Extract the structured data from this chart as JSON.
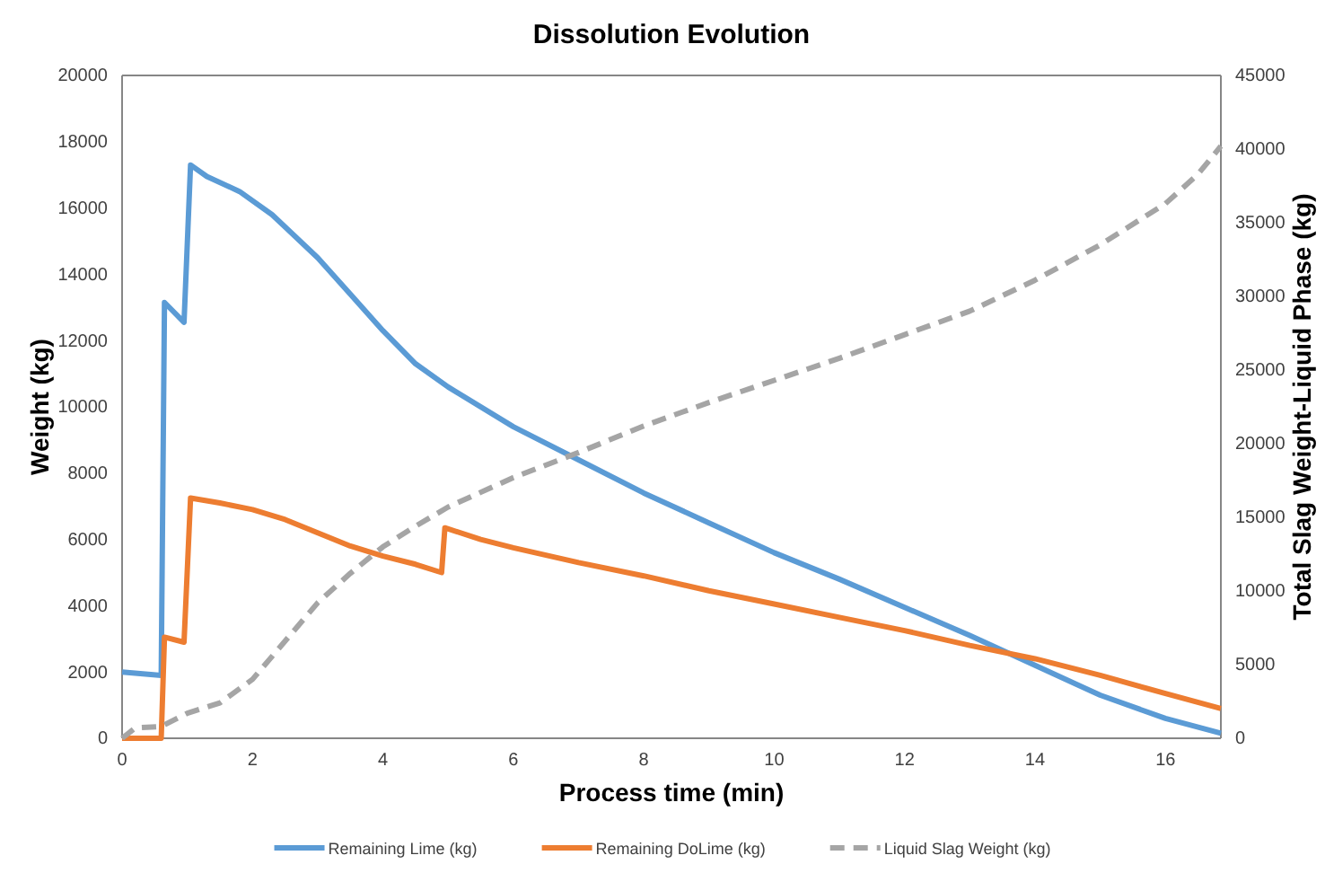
{
  "chart_data": {
    "type": "line",
    "title": "Dissolution Evolution",
    "xlabel": "Process time (min)",
    "ylabel": "Weight (kg)",
    "y2label": "Total Slag Weight-Liquid Phase (kg)",
    "xlim": [
      0,
      16.85
    ],
    "xticks": [
      0,
      2,
      4,
      6,
      8,
      10,
      12,
      14,
      16
    ],
    "ylim": [
      0,
      20000
    ],
    "yticks": [
      0,
      2000,
      4000,
      6000,
      8000,
      10000,
      12000,
      14000,
      16000,
      18000,
      20000
    ],
    "y2lim": [
      0,
      45000
    ],
    "y2ticks": [
      0,
      5000,
      10000,
      15000,
      20000,
      25000,
      30000,
      35000,
      40000,
      45000
    ],
    "grid": false,
    "legend": "bottom",
    "series": [
      {
        "name": "Remaining Lime (kg)",
        "color": "#5b9bd5",
        "line_style": "solid",
        "x": [
          0,
          0.6,
          0.65,
          0.95,
          1.05,
          1.3,
          1.8,
          2.3,
          3,
          3.5,
          4,
          4.5,
          5,
          6,
          7,
          8,
          9,
          10,
          11,
          12,
          13,
          14,
          15,
          16,
          16.85
        ],
        "values": [
          2000,
          1900,
          13150,
          12550,
          17300,
          16950,
          16500,
          15800,
          14500,
          13400,
          12300,
          11300,
          10600,
          9400,
          8400,
          7400,
          6500,
          5600,
          4800,
          3950,
          3100,
          2200,
          1300,
          600,
          150
        ]
      },
      {
        "name": "Remaining DoLime (kg)",
        "color": "#ed7d31",
        "line_style": "solid",
        "x": [
          0,
          0.6,
          0.65,
          0.95,
          1.05,
          1.5,
          2,
          2.5,
          3,
          3.5,
          4,
          4.5,
          4.9,
          4.95,
          5.5,
          6,
          7,
          8,
          9,
          10,
          11,
          12,
          13,
          14,
          15,
          16,
          16.85
        ],
        "values": [
          0,
          0,
          3050,
          2900,
          7250,
          7100,
          6900,
          6600,
          6200,
          5800,
          5500,
          5250,
          5000,
          6350,
          6000,
          5750,
          5300,
          4900,
          4450,
          4050,
          3650,
          3250,
          2800,
          2400,
          1900,
          1350,
          900
        ]
      },
      {
        "name": "Liquid Slag Weight (kg)",
        "color": "#a5a5a5",
        "line_style": "dashed",
        "axis": "y2",
        "x": [
          0,
          0.2,
          0.6,
          1,
          1.5,
          2,
          2.5,
          3,
          3.5,
          4,
          4.5,
          5,
          6,
          7,
          8,
          9,
          10,
          11,
          12,
          13,
          14,
          15,
          16,
          16.5,
          16.85
        ],
        "values": [
          0,
          700,
          800,
          1700,
          2400,
          4000,
          6600,
          9200,
          11200,
          13000,
          14400,
          15700,
          17700,
          19400,
          21200,
          22800,
          24300,
          25800,
          27400,
          29000,
          31100,
          33500,
          36300,
          38300,
          40200
        ]
      }
    ]
  }
}
